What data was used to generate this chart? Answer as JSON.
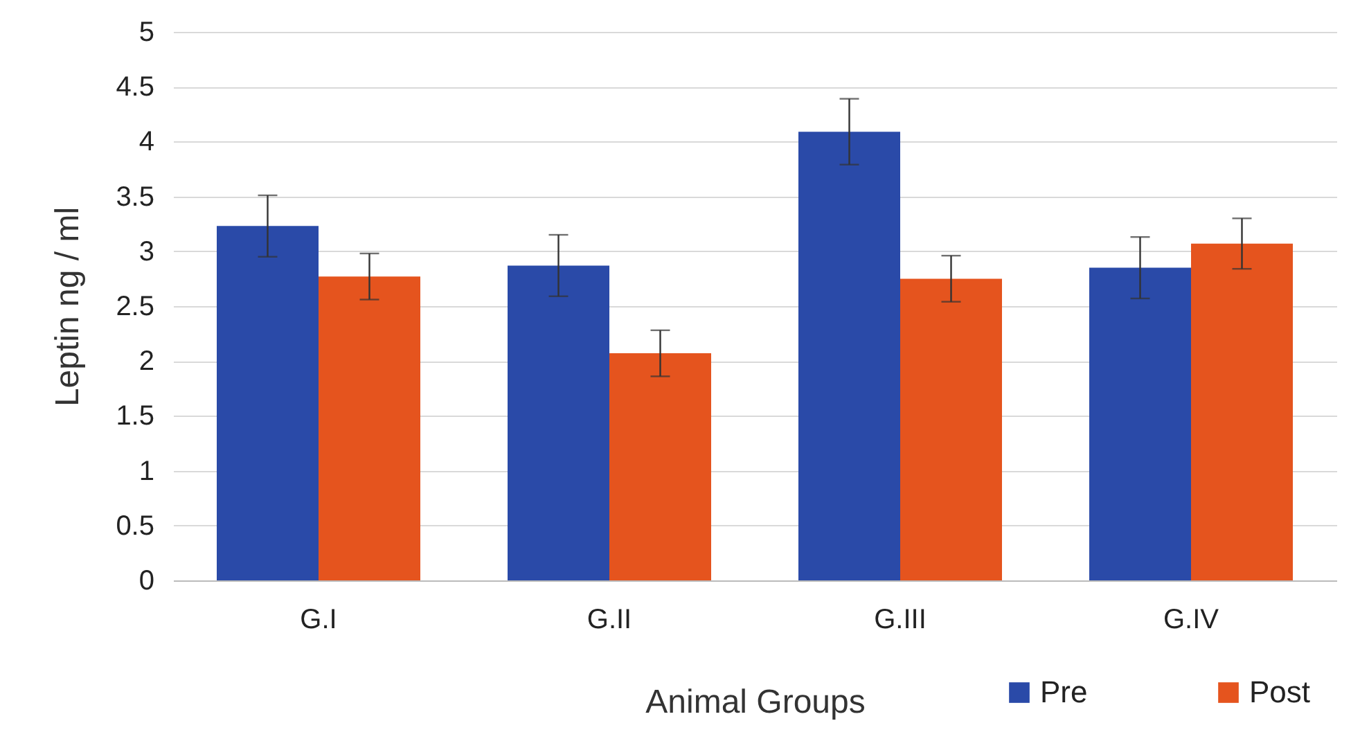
{
  "chart_data": {
    "type": "bar",
    "xlabel": "Animal Groups",
    "ylabel": "Leptin  ng / ml",
    "categories": [
      "G.I",
      "G.II",
      "G.III",
      "G.IV"
    ],
    "series": [
      {
        "name": "Pre",
        "color": "#2a4aa8",
        "values": [
          3.23,
          2.87,
          4.09,
          2.85
        ],
        "errors": [
          0.28,
          0.28,
          0.3,
          0.28
        ]
      },
      {
        "name": "Post",
        "color": "#e5541e",
        "values": [
          2.77,
          2.07,
          2.75,
          3.07
        ],
        "errors": [
          0.21,
          0.21,
          0.21,
          0.23
        ]
      }
    ],
    "ylim": [
      0,
      5
    ],
    "yticks": [
      0,
      0.5,
      1,
      1.5,
      2,
      2.5,
      3,
      3.5,
      4,
      4.5,
      5
    ],
    "grid": "y",
    "legend": "bottom right"
  }
}
